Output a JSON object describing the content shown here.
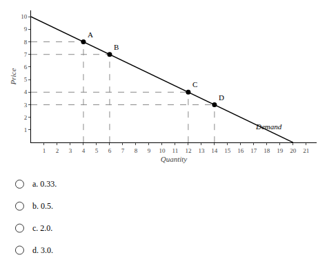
{
  "chart_data": {
    "type": "line",
    "xlabel": "Quantity",
    "ylabel": "Price",
    "x": [
      0,
      20
    ],
    "values": [
      10,
      0
    ],
    "color": "#000000",
    "xlim": [
      0,
      21.8
    ],
    "ylim": [
      0,
      10.5
    ],
    "xticks": [
      1,
      2,
      3,
      4,
      5,
      6,
      7,
      8,
      9,
      10,
      11,
      12,
      13,
      14,
      15,
      16,
      17,
      18,
      19,
      20,
      21
    ],
    "yticks": [
      1,
      2,
      3,
      4,
      5,
      6,
      7,
      8,
      9,
      10
    ],
    "points": [
      {
        "label": "A",
        "x": 4,
        "y": 8
      },
      {
        "label": "B",
        "x": 6,
        "y": 7
      },
      {
        "label": "C",
        "x": 12,
        "y": 4
      },
      {
        "label": "D",
        "x": 14,
        "y": 3
      }
    ],
    "line_style": "dashed",
    "annotations": [
      {
        "text": "Demand",
        "x": 17.0,
        "y": 0.85
      }
    ],
    "choices": [
      "a. 0.33.",
      "b. 0.5.",
      "c. 2.0.",
      "d. 3.0."
    ],
    "grid": false
  }
}
